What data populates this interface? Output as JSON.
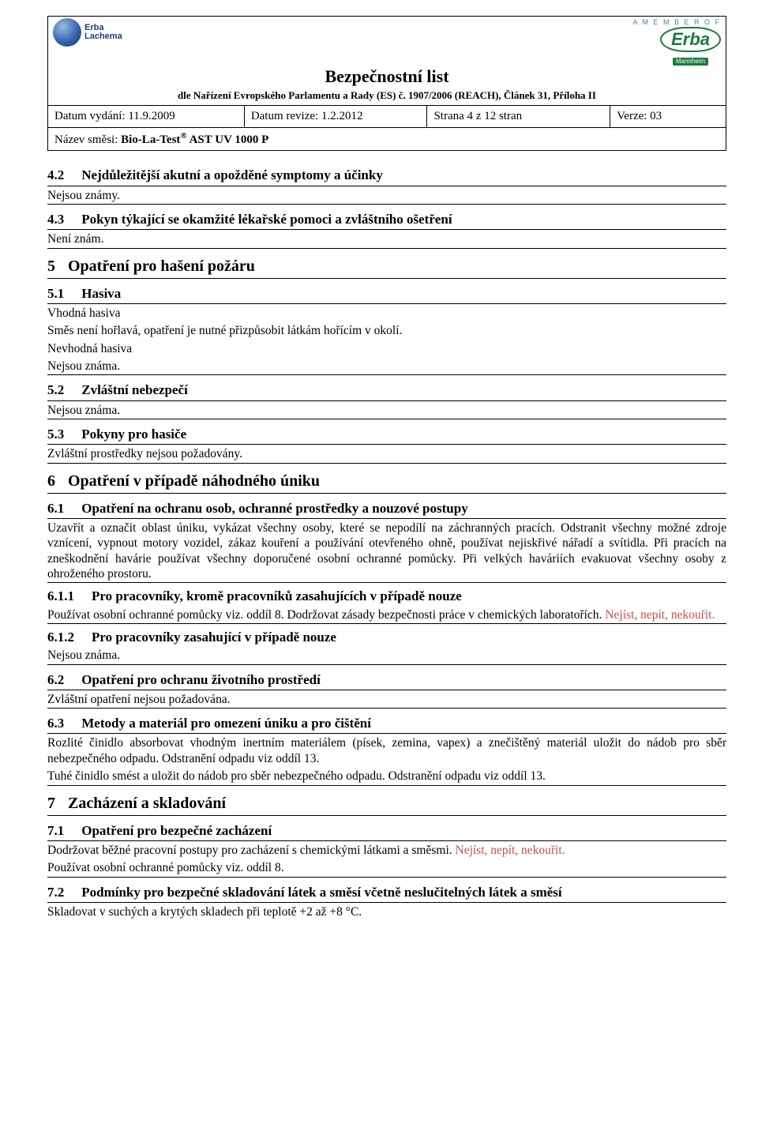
{
  "header": {
    "logo_left_line1": "Erba",
    "logo_left_line2": "Lachema",
    "member_of": "A  M E M B E R  O F",
    "logo_right_brand": "Erba",
    "logo_right_sub": "Mannheim",
    "title": "Bezpečnostní list",
    "subtitle": "dle Nařízení Evropského Parlamentu a Rady (ES) č. 1907/2006 (REACH), Článek  31, Příloha II",
    "issue_label": "Datum vydání: ",
    "issue_value": "11.9.2009",
    "rev_label": "Datum revize: ",
    "rev_value": "1.2.2012",
    "page_label": "Strana 4 z 12 stran",
    "version_label": "Verze: 03",
    "mixture_label": "Název směsi: ",
    "mixture_value_prefix": "Bio-La-Test",
    "mixture_value_reg": "®",
    "mixture_value_suffix": " AST UV 1000 P"
  },
  "s4_2": {
    "num": "4.2",
    "title": "Nejdůležitější akutní a opožděné symptomy a účinky",
    "body": "Nejsou známy."
  },
  "s4_3": {
    "num": "4.3",
    "title": "Pokyn týkající se okamžité lékařské pomoci a zvláštního ošetření",
    "body": "Není znám."
  },
  "s5": {
    "num": "5",
    "title": "Opatření pro hašení požáru"
  },
  "s5_1": {
    "num": "5.1",
    "title": "Hasiva",
    "l1": "Vhodná hasiva",
    "l2": "Směs není hořlavá, opatření je nutné přizpůsobit látkám hořícím v okolí.",
    "l3": "Nevhodná hasiva",
    "l4": "Nejsou známa."
  },
  "s5_2": {
    "num": "5.2",
    "title": "Zvláštní nebezpečí",
    "body": "Nejsou známa."
  },
  "s5_3": {
    "num": "5.3",
    "title": "Pokyny pro hasiče",
    "body": "Zvláštní prostředky nejsou požadovány."
  },
  "s6": {
    "num": "6",
    "title": "Opatření v případě náhodného úniku"
  },
  "s6_1": {
    "num": "6.1",
    "title": "Opatření na ochranu osob, ochranné prostředky a nouzové postupy",
    "body": "Uzavřít a označit oblast úniku, vykázat všechny osoby, které se nepodílí na záchranných pracích. Odstranit všechny možné zdroje vznícení, vypnout motory vozidel, zákaz kouření a používání otevřeného ohně, používat nejiskřivé nářadí a svítidla. Při pracích na zneškodnění havárie používat všechny doporučené osobní ochranné pomůcky. Při velkých haváriích evakuovat všechny osoby z ohroženého prostoru."
  },
  "s6_1_1": {
    "num": "6.1.1",
    "title": "Pro pracovníky, kromě pracovníků zasahujících v případě nouze",
    "body_black": "Používat osobní ochranné pomůcky viz. oddíl 8. Dodržovat zásady bezpečnosti práce v chemických laboratořích. ",
    "body_red": "Nejíst, nepít, nekouřit."
  },
  "s6_1_2": {
    "num": "6.1.2",
    "title": "Pro pracovníky zasahující v případě nouze",
    "body": "Nejsou známa."
  },
  "s6_2": {
    "num": "6.2",
    "title": "Opatření pro ochranu životního prostředí",
    "body": "Zvláštní opatření nejsou požadována."
  },
  "s6_3": {
    "num": "6.3",
    "title": "Metody a materiál pro omezení úniku a pro čištění",
    "body1": "Rozlité činidlo absorbovat vhodným inertním materiálem (písek, zemina, vapex) a znečištěný materiál uložit do nádob pro sběr nebezpečného odpadu. Odstranění odpadu viz oddíl 13.",
    "body2": "Tuhé činidlo smést a uložit do nádob pro sběr nebezpečného odpadu. Odstranění odpadu viz oddíl 13."
  },
  "s7": {
    "num": "7",
    "title": "Zacházení a skladování"
  },
  "s7_1": {
    "num": "7.1",
    "title": "Opatření pro bezpečné zacházení",
    "body_black1": "Dodržovat běžné pracovní postupy pro zacházení s chemickými látkami a směsmi. ",
    "body_red": "Nejíst, nepít, nekouřit.",
    "body_black2": "Používat osobní ochranné pomůcky viz. oddíl 8."
  },
  "s7_2": {
    "num": "7.2",
    "title": "Podmínky pro bezpečné skladování látek a směsí včetně neslučitelných látek a směsí",
    "body": "Skladovat v suchých a krytých skladech při teplotě +2 až +8 °C."
  }
}
